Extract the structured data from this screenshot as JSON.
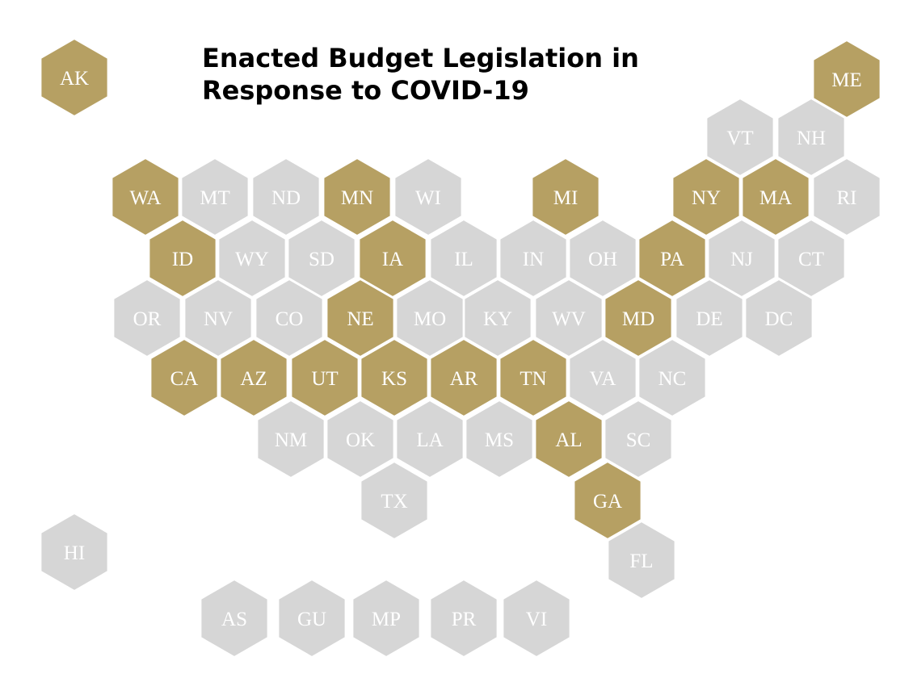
{
  "title_line1": "Enacted Budget Legislation in",
  "title_line2": "Response to COVID-19",
  "colors": {
    "enacted": "#b6a063",
    "other": "#d6d6d6",
    "label": "#ffffff"
  },
  "states": [
    {
      "code": "AK",
      "enacted": true
    },
    {
      "code": "ME",
      "enacted": true
    },
    {
      "code": "VT",
      "enacted": false
    },
    {
      "code": "NH",
      "enacted": false
    },
    {
      "code": "WA",
      "enacted": true
    },
    {
      "code": "MT",
      "enacted": false
    },
    {
      "code": "ND",
      "enacted": false
    },
    {
      "code": "MN",
      "enacted": true
    },
    {
      "code": "WI",
      "enacted": false
    },
    {
      "code": "MI",
      "enacted": true
    },
    {
      "code": "NY",
      "enacted": true
    },
    {
      "code": "MA",
      "enacted": true
    },
    {
      "code": "RI",
      "enacted": false
    },
    {
      "code": "ID",
      "enacted": true
    },
    {
      "code": "WY",
      "enacted": false
    },
    {
      "code": "SD",
      "enacted": false
    },
    {
      "code": "IA",
      "enacted": true
    },
    {
      "code": "IL",
      "enacted": false
    },
    {
      "code": "IN",
      "enacted": false
    },
    {
      "code": "OH",
      "enacted": false
    },
    {
      "code": "PA",
      "enacted": true
    },
    {
      "code": "NJ",
      "enacted": false
    },
    {
      "code": "CT",
      "enacted": false
    },
    {
      "code": "OR",
      "enacted": false
    },
    {
      "code": "NV",
      "enacted": false
    },
    {
      "code": "CO",
      "enacted": false
    },
    {
      "code": "NE",
      "enacted": true
    },
    {
      "code": "MO",
      "enacted": false
    },
    {
      "code": "KY",
      "enacted": false
    },
    {
      "code": "WV",
      "enacted": false
    },
    {
      "code": "MD",
      "enacted": true
    },
    {
      "code": "DE",
      "enacted": false
    },
    {
      "code": "DC",
      "enacted": false
    },
    {
      "code": "CA",
      "enacted": true
    },
    {
      "code": "AZ",
      "enacted": true
    },
    {
      "code": "UT",
      "enacted": true
    },
    {
      "code": "KS",
      "enacted": true
    },
    {
      "code": "AR",
      "enacted": true
    },
    {
      "code": "TN",
      "enacted": true
    },
    {
      "code": "VA",
      "enacted": false
    },
    {
      "code": "NC",
      "enacted": false
    },
    {
      "code": "NM",
      "enacted": false
    },
    {
      "code": "OK",
      "enacted": false
    },
    {
      "code": "LA",
      "enacted": false
    },
    {
      "code": "MS",
      "enacted": false
    },
    {
      "code": "AL",
      "enacted": true
    },
    {
      "code": "SC",
      "enacted": false
    },
    {
      "code": "TX",
      "enacted": false
    },
    {
      "code": "GA",
      "enacted": true
    },
    {
      "code": "HI",
      "enacted": false
    },
    {
      "code": "FL",
      "enacted": false
    },
    {
      "code": "AS",
      "enacted": false
    },
    {
      "code": "GU",
      "enacted": false
    },
    {
      "code": "MP",
      "enacted": false
    },
    {
      "code": "PR",
      "enacted": false
    },
    {
      "code": "VI",
      "enacted": false
    }
  ]
}
